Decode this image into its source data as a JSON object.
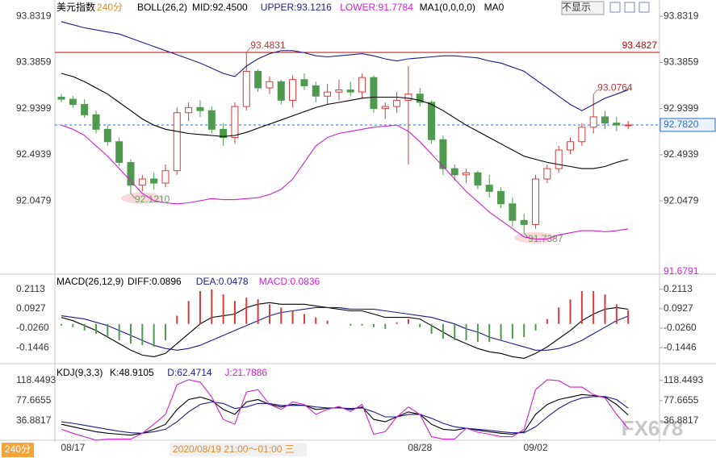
{
  "header": {
    "button": "不显示",
    "watermark": "FX678",
    "timeframe": "240分",
    "crosshair_time": "2020/08/19 21:00～01:00 三"
  },
  "chart_data": [
    {
      "type": "candlestick",
      "title": "美元指数",
      "subtitle": "240分",
      "indicator": "BOLL(26,2)",
      "extra": [
        "MA1(0,0,0,0)",
        "MA0"
      ],
      "categories": [
        null,
        "08/17",
        null,
        null,
        null,
        null,
        null,
        null,
        null,
        null,
        null,
        null,
        null,
        null,
        null,
        null,
        null,
        null,
        null,
        null,
        null,
        null,
        null,
        null,
        null,
        null,
        null,
        null,
        null,
        null,
        null,
        "08/28",
        null,
        null,
        null,
        null,
        null,
        null,
        null,
        null,
        null,
        "09/02",
        null,
        null,
        null,
        null,
        null,
        null,
        null,
        null
      ],
      "ohlc": [
        [
          93.05,
          93.08,
          93.0,
          93.03
        ],
        [
          93.03,
          93.06,
          92.95,
          92.98
        ],
        [
          92.98,
          93.03,
          92.85,
          92.88
        ],
        [
          92.88,
          92.92,
          92.7,
          92.74
        ],
        [
          92.74,
          92.78,
          92.58,
          92.62
        ],
        [
          92.62,
          92.66,
          92.38,
          92.42
        ],
        [
          92.42,
          92.45,
          92.121,
          92.2
        ],
        [
          92.2,
          92.3,
          92.14,
          92.26
        ],
        [
          92.26,
          92.32,
          92.16,
          92.22
        ],
        [
          92.22,
          92.4,
          92.18,
          92.34
        ],
        [
          92.34,
          92.95,
          92.3,
          92.9
        ],
        [
          92.9,
          93.0,
          92.82,
          92.95
        ],
        [
          92.95,
          93.02,
          92.86,
          92.92
        ],
        [
          92.92,
          92.96,
          92.7,
          92.74
        ],
        [
          92.74,
          92.8,
          92.58,
          92.66
        ],
        [
          92.66,
          93.0,
          92.6,
          92.96
        ],
        [
          92.96,
          93.4831,
          92.92,
          93.3
        ],
        [
          93.3,
          93.32,
          93.1,
          93.14
        ],
        [
          93.14,
          93.25,
          93.08,
          93.2
        ],
        [
          93.2,
          93.22,
          92.98,
          93.02
        ],
        [
          93.02,
          93.26,
          92.95,
          93.22
        ],
        [
          93.22,
          93.28,
          93.12,
          93.16
        ],
        [
          93.16,
          93.2,
          93.0,
          93.06
        ],
        [
          93.06,
          93.18,
          92.98,
          93.1
        ],
        [
          93.1,
          93.22,
          93.02,
          93.12
        ],
        [
          93.12,
          93.2,
          93.06,
          93.1
        ],
        [
          93.1,
          93.28,
          93.04,
          93.24
        ],
        [
          93.24,
          93.26,
          92.9,
          92.94
        ],
        [
          92.94,
          93.0,
          92.84,
          92.96
        ],
        [
          92.96,
          93.1,
          92.9,
          93.02
        ],
        [
          93.02,
          93.35,
          92.4,
          93.08
        ],
        [
          93.08,
          93.14,
          92.96,
          93.0
        ],
        [
          93.0,
          93.02,
          92.6,
          92.64
        ],
        [
          92.64,
          92.68,
          92.3,
          92.36
        ],
        [
          92.36,
          92.4,
          92.24,
          92.3
        ],
        [
          92.3,
          92.36,
          92.22,
          92.32
        ],
        [
          92.32,
          92.34,
          92.16,
          92.2
        ],
        [
          92.2,
          92.3,
          92.08,
          92.14
        ],
        [
          92.14,
          92.18,
          91.98,
          92.02
        ],
        [
          92.02,
          92.08,
          91.8,
          91.86
        ],
        [
          91.86,
          91.92,
          91.7387,
          91.82
        ],
        [
          91.82,
          92.3,
          91.78,
          92.26
        ],
        [
          92.26,
          92.4,
          92.22,
          92.36
        ],
        [
          92.36,
          92.58,
          92.32,
          92.54
        ],
        [
          92.54,
          92.66,
          92.5,
          92.62
        ],
        [
          92.62,
          92.8,
          92.58,
          92.76
        ],
        [
          92.76,
          93.0764,
          92.7,
          92.86
        ],
        [
          92.86,
          92.92,
          92.74,
          92.8
        ],
        [
          92.8,
          92.86,
          92.72,
          92.78
        ],
        [
          92.78,
          92.82,
          92.74,
          92.782
        ]
      ],
      "up_color": "#d83a3a",
      "down_color": "#4f9a4f",
      "series": [
        {
          "name": "MID:92.4500",
          "color": "#000000",
          "values": [
            93.28,
            93.25,
            93.2,
            93.14,
            93.08,
            93.0,
            92.92,
            92.84,
            92.78,
            92.74,
            92.72,
            92.7,
            92.69,
            92.68,
            92.67,
            92.68,
            92.71,
            92.75,
            92.79,
            92.83,
            92.87,
            92.91,
            92.95,
            92.98,
            93.0,
            93.02,
            93.04,
            93.05,
            93.05,
            93.05,
            93.04,
            93.02,
            92.98,
            92.92,
            92.85,
            92.78,
            92.72,
            92.66,
            92.6,
            92.54,
            92.48,
            92.45,
            92.42,
            92.4,
            92.38,
            92.36,
            92.36,
            92.38,
            92.42,
            92.45
          ]
        },
        {
          "name": "UPPER:93.1216",
          "color": "#1c1c8c",
          "values": [
            93.78,
            93.75,
            93.72,
            93.7,
            93.68,
            93.66,
            93.62,
            93.58,
            93.54,
            93.5,
            93.46,
            93.42,
            93.38,
            93.33,
            93.28,
            93.25,
            93.35,
            93.42,
            93.47,
            93.5,
            93.5,
            93.48,
            93.45,
            93.44,
            93.45,
            93.46,
            93.47,
            93.45,
            93.42,
            93.4,
            93.42,
            93.43,
            93.44,
            93.45,
            93.45,
            93.44,
            93.43,
            93.4,
            93.38,
            93.34,
            93.3,
            93.22,
            93.14,
            93.06,
            92.98,
            92.92,
            92.98,
            93.04,
            93.08,
            93.1216
          ]
        },
        {
          "name": "LOWER:91.7784",
          "color": "#d020d0",
          "values": [
            92.78,
            92.74,
            92.68,
            92.58,
            92.48,
            92.36,
            92.24,
            92.12,
            92.05,
            92.03,
            92.02,
            92.03,
            92.05,
            92.07,
            92.06,
            92.06,
            92.07,
            92.08,
            92.11,
            92.16,
            92.26,
            92.42,
            92.58,
            92.66,
            92.7,
            92.72,
            92.74,
            92.76,
            92.77,
            92.78,
            92.72,
            92.62,
            92.5,
            92.38,
            92.26,
            92.14,
            92.04,
            91.94,
            91.86,
            91.78,
            91.7,
            91.68,
            91.68,
            91.72,
            91.74,
            91.76,
            91.76,
            91.75,
            91.76,
            91.7784
          ]
        }
      ],
      "ylim": [
        91.356,
        93.95
      ],
      "yticks": [
        {
          "value": 93.8319,
          "label": "93.8319"
        },
        {
          "value": 93.3859,
          "label": "93.3859"
        },
        {
          "value": 92.9399,
          "label": "92.9399"
        },
        {
          "value": 92.4939,
          "label": "92.4939"
        },
        {
          "value": 92.0479,
          "label": "92.0479"
        }
      ],
      "bottom_label": 91.6791,
      "hlines": [
        {
          "value": 93.4827,
          "label": "93.4827",
          "color": "#c00000",
          "dashed": false
        },
        {
          "value": 92.782,
          "label": "92.7820",
          "color": "#2a6fc9",
          "dashed": true
        }
      ],
      "annotations": [
        {
          "value": 93.4831,
          "label": "93.4831"
        },
        {
          "value": 92.121,
          "label": "92.1210"
        },
        {
          "value": 91.7387,
          "label": "91.7387"
        },
        {
          "value": 93.0764,
          "label": "93.0764"
        }
      ]
    },
    {
      "type": "macd",
      "title": "MACD(26,12,9)",
      "series": [
        {
          "name": "DIFF:0.0896",
          "color": "#000000",
          "values": [
            0.04,
            0.02,
            -0.01,
            -0.04,
            -0.08,
            -0.12,
            -0.16,
            -0.19,
            -0.2,
            -0.18,
            -0.12,
            -0.06,
            0.0,
            0.04,
            0.05,
            0.06,
            0.1,
            0.12,
            0.13,
            0.12,
            0.12,
            0.12,
            0.11,
            0.1,
            0.09,
            0.08,
            0.08,
            0.06,
            0.04,
            0.04,
            0.04,
            0.03,
            -0.01,
            -0.05,
            -0.09,
            -0.12,
            -0.15,
            -0.17,
            -0.18,
            -0.2,
            -0.21,
            -0.18,
            -0.14,
            -0.09,
            -0.04,
            0.02,
            0.06,
            0.09,
            0.1,
            0.0896
          ]
        },
        {
          "name": "DEA:0.0478",
          "color": "#1c1c8c",
          "values": [
            0.05,
            0.04,
            0.03,
            0.01,
            -0.01,
            -0.04,
            -0.07,
            -0.1,
            -0.13,
            -0.15,
            -0.16,
            -0.15,
            -0.13,
            -0.1,
            -0.07,
            -0.04,
            -0.01,
            0.02,
            0.05,
            0.07,
            0.08,
            0.09,
            0.1,
            0.1,
            0.1,
            0.09,
            0.09,
            0.09,
            0.08,
            0.07,
            0.06,
            0.05,
            0.04,
            0.02,
            0.0,
            -0.03,
            -0.05,
            -0.08,
            -0.1,
            -0.12,
            -0.14,
            -0.16,
            -0.16,
            -0.15,
            -0.13,
            -0.1,
            -0.06,
            -0.02,
            0.02,
            0.0478
          ]
        },
        {
          "name": "MACD:0.0836",
          "color": "#d020d0",
          "bars": true,
          "up_color": "#d83a3a",
          "down_color": "#4f9a4f",
          "values": [
            -0.01,
            -0.02,
            -0.04,
            -0.06,
            -0.08,
            -0.1,
            -0.12,
            -0.13,
            -0.14,
            -0.1,
            0.05,
            0.14,
            0.2,
            0.21,
            0.18,
            0.14,
            0.16,
            0.15,
            0.12,
            0.1,
            0.08,
            0.06,
            0.04,
            0.02,
            0.0,
            -0.01,
            -0.01,
            -0.02,
            -0.03,
            0.01,
            0.03,
            -0.02,
            -0.06,
            -0.09,
            -0.1,
            -0.1,
            -0.11,
            -0.11,
            -0.1,
            -0.09,
            -0.08,
            -0.04,
            0.03,
            0.1,
            0.15,
            0.2,
            0.2,
            0.18,
            0.12,
            0.0836
          ]
        }
      ],
      "ylim": [
        -0.2374,
        0.2938
      ],
      "yticks": [
        {
          "value": 0.2113,
          "label": "0.2113"
        },
        {
          "value": 0.0927,
          "label": "0.0927"
        },
        {
          "value": -0.026,
          "label": "-0.0260"
        },
        {
          "value": -0.1446,
          "label": "-0.1446"
        }
      ]
    },
    {
      "type": "line",
      "title": "KDJ(9,3,3)",
      "series": [
        {
          "name": "K:48.9105",
          "color": "#000000",
          "values": [
            30,
            25,
            20,
            15,
            12,
            10,
            8,
            12,
            20,
            30,
            60,
            80,
            85,
            78,
            60,
            50,
            75,
            80,
            70,
            65,
            70,
            68,
            60,
            62,
            64,
            60,
            65,
            40,
            35,
            45,
            55,
            50,
            30,
            20,
            18,
            22,
            18,
            15,
            12,
            10,
            15,
            50,
            70,
            80,
            85,
            90,
            88,
            85,
            70,
            48.9105
          ]
        },
        {
          "name": "D:62.4714",
          "color": "#1c1c8c",
          "values": [
            35,
            32,
            28,
            24,
            20,
            16,
            13,
            12,
            15,
            20,
            35,
            55,
            70,
            75,
            72,
            62,
            65,
            72,
            72,
            68,
            68,
            68,
            65,
            63,
            63,
            62,
            63,
            55,
            45,
            45,
            50,
            50,
            42,
            32,
            25,
            22,
            20,
            18,
            15,
            13,
            13,
            25,
            45,
            62,
            75,
            83,
            86,
            86,
            80,
            62.4714
          ]
        },
        {
          "name": "J:21.7886",
          "color": "#d020d0",
          "values": [
            20,
            12,
            5,
            -2,
            0,
            0,
            0,
            12,
            30,
            50,
            110,
            120,
            115,
            85,
            40,
            30,
            95,
            100,
            70,
            60,
            75,
            70,
            50,
            60,
            66,
            56,
            70,
            10,
            15,
            45,
            65,
            50,
            5,
            0,
            0,
            22,
            14,
            10,
            5,
            5,
            20,
            100,
            120,
            118,
            105,
            105,
            90,
            83,
            50,
            21.7886
          ]
        }
      ],
      "ylim": [
        -2.2,
        150.7
      ],
      "yticks": [
        {
          "value": 118.4493,
          "label": "118.4493"
        },
        {
          "value": 77.6655,
          "label": "77.6655"
        },
        {
          "value": 36.8817,
          "label": "36.8817"
        }
      ]
    }
  ]
}
